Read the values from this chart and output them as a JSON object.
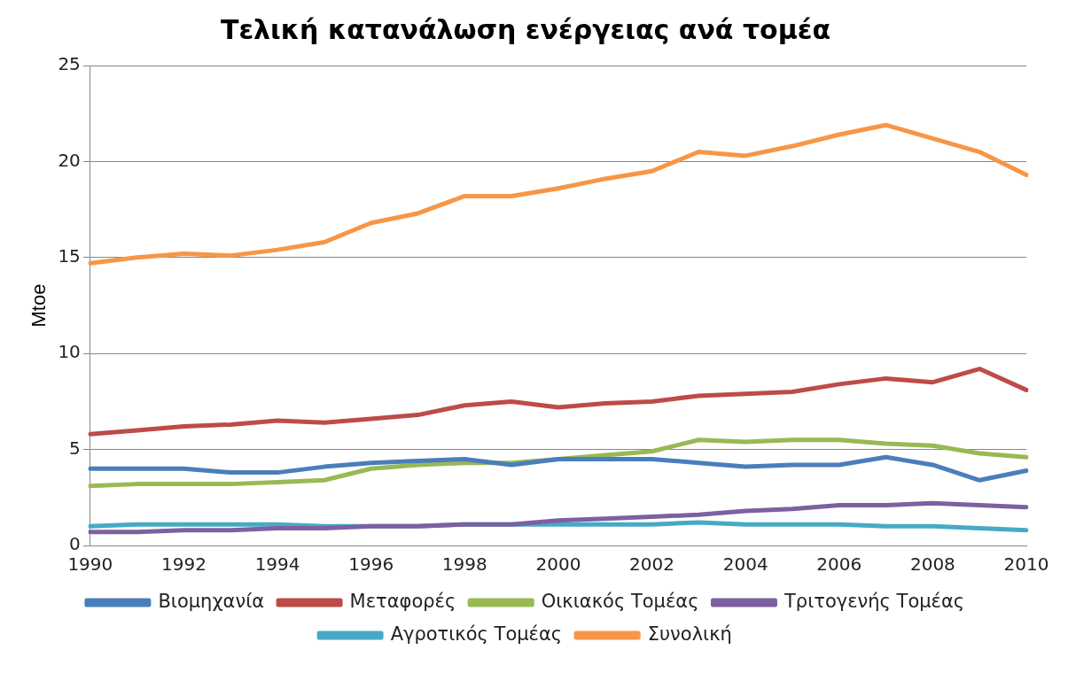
{
  "chart_data": {
    "type": "line",
    "title": "Τελική κατανάλωση ενέργειας ανά τομέα",
    "ylabel": "Mtoe",
    "categories": [
      "1990",
      null,
      "1992",
      null,
      "1994",
      null,
      "1996",
      null,
      "1998",
      null,
      "2000",
      null,
      "2002",
      null,
      "2004",
      null,
      "2006",
      null,
      "2008",
      null,
      "2010"
    ],
    "series": [
      {
        "name": "Βιομηχανία",
        "color": "#4a7ebb",
        "values": [
          4.0,
          4.0,
          4.0,
          3.8,
          3.8,
          4.1,
          4.3,
          4.4,
          4.5,
          4.2,
          4.5,
          4.5,
          4.5,
          4.3,
          4.1,
          4.2,
          4.2,
          4.6,
          4.2,
          3.4,
          3.9
        ]
      },
      {
        "name": "Μεταφορές",
        "color": "#be4b48",
        "values": [
          5.8,
          6.0,
          6.2,
          6.3,
          6.5,
          6.4,
          6.6,
          6.8,
          7.3,
          7.5,
          7.2,
          7.4,
          7.5,
          7.8,
          7.9,
          8.0,
          8.4,
          8.7,
          8.5,
          9.2,
          8.1
        ]
      },
      {
        "name": "Οικιακός Τομέας",
        "color": "#98b954",
        "values": [
          3.1,
          3.2,
          3.2,
          3.2,
          3.3,
          3.4,
          4.0,
          4.2,
          4.3,
          4.3,
          4.5,
          4.7,
          4.9,
          5.5,
          5.4,
          5.5,
          5.5,
          5.3,
          5.2,
          4.8,
          4.6
        ]
      },
      {
        "name": "Τριτογενής Τομέας",
        "color": "#7d60a0",
        "values": [
          0.7,
          0.7,
          0.8,
          0.8,
          0.9,
          0.9,
          1.0,
          1.0,
          1.1,
          1.1,
          1.3,
          1.4,
          1.5,
          1.6,
          1.8,
          1.9,
          2.1,
          2.1,
          2.2,
          2.1,
          2.0
        ]
      },
      {
        "name": "Αγροτικός Τομέας",
        "color": "#46aac5",
        "values": [
          1.0,
          1.1,
          1.1,
          1.1,
          1.1,
          1.0,
          1.0,
          1.0,
          1.1,
          1.1,
          1.1,
          1.1,
          1.1,
          1.2,
          1.1,
          1.1,
          1.1,
          1.0,
          1.0,
          0.9,
          0.8
        ]
      },
      {
        "name": "Συνολική",
        "color": "#f79646",
        "values": [
          14.7,
          15.0,
          15.2,
          15.1,
          15.4,
          15.8,
          16.8,
          17.3,
          18.2,
          18.2,
          18.6,
          19.1,
          19.5,
          20.5,
          20.3,
          20.8,
          21.4,
          21.9,
          21.2,
          20.5,
          19.3
        ]
      }
    ],
    "ylim": [
      0,
      25
    ],
    "yticks": [
      0,
      5,
      10,
      15,
      20,
      25
    ],
    "grid": "y",
    "legend": "bottom",
    "marker": "none",
    "line_style": "solid"
  }
}
